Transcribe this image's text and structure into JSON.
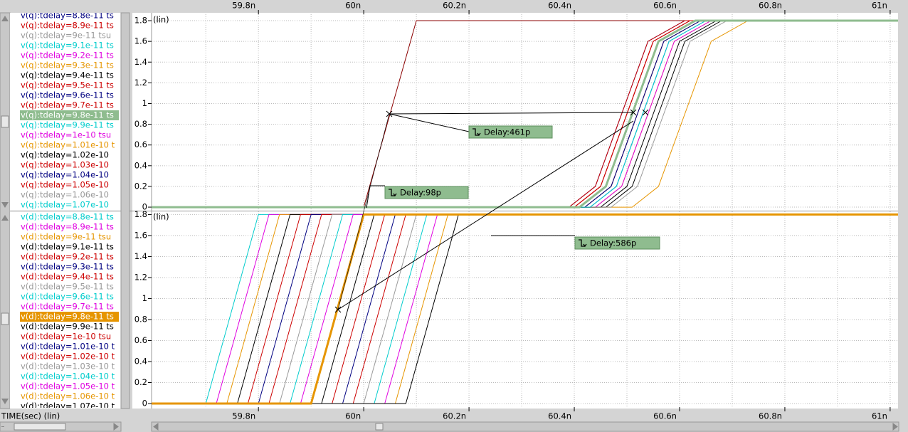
{
  "x_axis": {
    "label": "TIME(sec) (lin)",
    "xlim": [
      59.597,
      61.015
    ],
    "xticks": [
      {
        "value": 59.8,
        "label": "59.8n"
      },
      {
        "value": 60,
        "label": "60n"
      },
      {
        "value": 60.2,
        "label": "60.2n"
      },
      {
        "value": 60.4,
        "label": "60.4n"
      },
      {
        "value": 60.6,
        "label": "60.6n"
      },
      {
        "value": 60.8,
        "label": "60.8n"
      },
      {
        "value": 61,
        "label": "61n"
      }
    ],
    "xminor": [
      59.7,
      59.9,
      60.1,
      60.3,
      60.5,
      60.7,
      60.9
    ]
  },
  "panels": [
    {
      "scale_label": "(lin)",
      "ylim": [
        -0.034,
        1.862
      ],
      "yticks": [
        0,
        0.2,
        0.4,
        0.6,
        0.8,
        1,
        1.2,
        1.4,
        1.6,
        1.8
      ],
      "extra": [
        {
          "color": "#8b0000",
          "x": [
            59.597,
            60.0,
            60.1,
            61.015
          ],
          "y": [
            0,
            0,
            1.8,
            1.8
          ]
        }
      ],
      "signals": [
        {
          "name": "v(q):tdelay=8.8e-11 ts",
          "color": "#000080",
          "x": [
            59.597,
            60.39,
            60.44,
            60.49,
            60.54,
            60.61,
            61.015
          ],
          "y": [
            0,
            0,
            0.2,
            0.9,
            1.6,
            1.8,
            1.8
          ]
        },
        {
          "name": "v(q):tdelay=8.9e-11 ts",
          "color": "#cc0000",
          "x": [
            59.597,
            60.4,
            60.45,
            60.5,
            60.55,
            60.62,
            61.015
          ],
          "y": [
            0,
            0,
            0.2,
            0.9,
            1.6,
            1.8,
            1.8
          ]
        },
        {
          "name": "v(q):tdelay=9e-11 tsu",
          "color": "#999999",
          "x": [
            59.597,
            60.41,
            60.46,
            60.51,
            60.56,
            60.63,
            61.015
          ],
          "y": [
            0,
            0,
            0.2,
            0.9,
            1.6,
            1.8,
            1.8
          ]
        },
        {
          "name": "v(q):tdelay=9.1e-11 ts",
          "color": "#00cccc",
          "x": [
            59.597,
            60.42,
            60.47,
            60.52,
            60.57,
            60.64,
            61.015
          ],
          "y": [
            0,
            0,
            0.2,
            0.9,
            1.6,
            1.8,
            1.8
          ]
        },
        {
          "name": "v(q):tdelay=9.2e-11 ts",
          "color": "#e000e0",
          "x": [
            59.597,
            60.43,
            60.48,
            60.53,
            60.58,
            60.65,
            61.015
          ],
          "y": [
            0,
            0,
            0.2,
            0.9,
            1.6,
            1.8,
            1.8
          ]
        },
        {
          "name": "v(q):tdelay=9.3e-11 ts",
          "color": "#e69500",
          "x": [
            59.597,
            60.44,
            60.49,
            60.54,
            60.59,
            60.66,
            61.015
          ],
          "y": [
            0,
            0,
            0.2,
            0.9,
            1.6,
            1.8,
            1.8
          ]
        },
        {
          "name": "v(q):tdelay=9.4e-11 ts",
          "color": "#000000",
          "x": [
            59.597,
            60.45,
            60.5,
            60.55,
            60.6,
            60.67,
            61.015
          ],
          "y": [
            0,
            0,
            0.2,
            0.9,
            1.6,
            1.8,
            1.8
          ]
        },
        {
          "name": "v(q):tdelay=9.5e-11 ts",
          "color": "#cc0000",
          "x": [
            59.597,
            60.4,
            60.45,
            60.5,
            60.55,
            60.62,
            61.015
          ],
          "y": [
            0,
            0,
            0.2,
            0.9,
            1.6,
            1.8,
            1.8
          ]
        },
        {
          "name": "v(q):tdelay=9.6e-11 ts",
          "color": "#000080",
          "x": [
            59.597,
            60.41,
            60.46,
            60.51,
            60.56,
            60.63,
            61.015
          ],
          "y": [
            0,
            0,
            0.2,
            0.9,
            1.6,
            1.8,
            1.8
          ]
        },
        {
          "name": "v(q):tdelay=9.7e-11 ts",
          "color": "#cc0000",
          "x": [
            59.597,
            60.42,
            60.47,
            60.52,
            60.57,
            60.64,
            61.015
          ],
          "y": [
            0,
            0,
            0.2,
            0.9,
            1.6,
            1.8,
            1.8
          ]
        },
        {
          "name": "v(q):tdelay=9.8e-11 ts",
          "color": "#8fbc8f",
          "selected": true,
          "x": [
            59.597,
            60.41,
            60.46,
            60.51,
            60.56,
            60.63,
            61.015
          ],
          "y": [
            0,
            0,
            0.2,
            0.9,
            1.6,
            1.8,
            1.8
          ]
        },
        {
          "name": "v(q):tdelay=9.9e-11 ts",
          "color": "#00cccc",
          "x": [
            59.597,
            60.43,
            60.48,
            60.53,
            60.58,
            60.65,
            61.015
          ],
          "y": [
            0,
            0,
            0.2,
            0.9,
            1.6,
            1.8,
            1.8
          ]
        },
        {
          "name": "v(q):tdelay=1e-10 tsu",
          "color": "#e000e0",
          "x": [
            59.597,
            60.44,
            60.49,
            60.54,
            60.59,
            60.66,
            61.015
          ],
          "y": [
            0,
            0,
            0.2,
            0.9,
            1.6,
            1.8,
            1.8
          ]
        },
        {
          "name": "v(q):tdelay=1.01e-10 t",
          "color": "#e69500",
          "x": [
            59.597,
            60.51,
            60.56,
            60.61,
            60.66,
            60.73,
            61.015
          ],
          "y": [
            0,
            0,
            0.2,
            0.9,
            1.6,
            1.8,
            1.8
          ]
        },
        {
          "name": "v(q):tdelay=1.02e-10",
          "color": "#000000",
          "x": [
            59.597,
            60.46,
            60.51,
            60.56,
            60.61,
            60.68,
            61.015
          ],
          "y": [
            0,
            0,
            0.2,
            0.9,
            1.6,
            1.8,
            1.8
          ]
        },
        {
          "name": "v(q):tdelay=1.03e-10",
          "color": "#cc0000",
          "x": [
            59.597,
            60.39,
            60.44,
            60.49,
            60.54,
            60.61,
            61.015
          ],
          "y": [
            0,
            0,
            0.2,
            0.9,
            1.6,
            1.8,
            1.8
          ]
        },
        {
          "name": "v(q):tdelay=1.04e-10",
          "color": "#000080",
          "x": [
            59.597,
            60.42,
            60.47,
            60.52,
            60.57,
            60.64,
            61.015
          ],
          "y": [
            0,
            0,
            0.2,
            0.9,
            1.6,
            1.8,
            1.8
          ]
        },
        {
          "name": "v(q):tdelay=1.05e-10",
          "color": "#cc0000",
          "x": [
            59.597,
            60.4,
            60.45,
            60.5,
            60.55,
            60.62,
            61.015
          ],
          "y": [
            0,
            0,
            0.2,
            0.9,
            1.6,
            1.8,
            1.8
          ]
        },
        {
          "name": "v(q):tdelay=1.06e-10",
          "color": "#999999",
          "x": [
            59.597,
            60.47,
            60.52,
            60.57,
            60.62,
            60.69,
            61.015
          ],
          "y": [
            0,
            0,
            0.2,
            0.9,
            1.6,
            1.8,
            1.8
          ]
        },
        {
          "name": "v(q):tdelay=1.07e-10",
          "color": "#00cccc",
          "x": [
            59.597,
            60.43,
            60.48,
            60.53,
            60.58,
            60.65,
            61.015
          ],
          "y": [
            0,
            0,
            0.2,
            0.9,
            1.6,
            1.8,
            1.8
          ]
        }
      ]
    },
    {
      "scale_label": "(lin)",
      "ylim": [
        -0.034,
        1.83
      ],
      "yticks": [
        0,
        0.2,
        0.4,
        0.6,
        0.8,
        1,
        1.2,
        1.4,
        1.6,
        1.8
      ],
      "signals": [
        {
          "name": "v(d):tdelay=8.8e-11 ts",
          "color": "#00cccc",
          "x": [
            59.597,
            59.7,
            59.8,
            61.015
          ],
          "y": [
            0,
            0,
            1.8,
            1.8
          ]
        },
        {
          "name": "v(d):tdelay=8.9e-11 ts",
          "color": "#e000e0",
          "x": [
            59.597,
            59.72,
            59.82,
            61.015
          ],
          "y": [
            0,
            0,
            1.8,
            1.8
          ]
        },
        {
          "name": "v(d):tdelay=9e-11 tsu",
          "color": "#e69500",
          "x": [
            59.597,
            59.74,
            59.84,
            61.015
          ],
          "y": [
            0,
            0,
            1.8,
            1.8
          ]
        },
        {
          "name": "v(d):tdelay=9.1e-11 ts",
          "color": "#000000",
          "x": [
            59.597,
            59.76,
            59.86,
            61.015
          ],
          "y": [
            0,
            0,
            1.8,
            1.8
          ]
        },
        {
          "name": "v(d):tdelay=9.2e-11 ts",
          "color": "#cc0000",
          "x": [
            59.597,
            59.78,
            59.88,
            61.015
          ],
          "y": [
            0,
            0,
            1.8,
            1.8
          ]
        },
        {
          "name": "v(d):tdelay=9.3e-11 ts",
          "color": "#000080",
          "x": [
            59.597,
            59.8,
            59.9,
            61.015
          ],
          "y": [
            0,
            0,
            1.8,
            1.8
          ]
        },
        {
          "name": "v(d):tdelay=9.4e-11 ts",
          "color": "#cc0000",
          "x": [
            59.597,
            59.82,
            59.92,
            61.015
          ],
          "y": [
            0,
            0,
            1.8,
            1.8
          ]
        },
        {
          "name": "v(d):tdelay=9.5e-11 ts",
          "color": "#999999",
          "x": [
            59.597,
            59.84,
            59.94,
            61.015
          ],
          "y": [
            0,
            0,
            1.8,
            1.8
          ]
        },
        {
          "name": "v(d):tdelay=9.6e-11 ts",
          "color": "#00cccc",
          "x": [
            59.597,
            59.86,
            59.96,
            61.015
          ],
          "y": [
            0,
            0,
            1.8,
            1.8
          ]
        },
        {
          "name": "v(d):tdelay=9.7e-11 ts",
          "color": "#e000e0",
          "x": [
            59.597,
            59.88,
            59.98,
            61.015
          ],
          "y": [
            0,
            0,
            1.8,
            1.8
          ]
        },
        {
          "name": "v(d):tdelay=9.8e-11 ts",
          "color": "#e69500",
          "selected": true,
          "x": [
            59.597,
            59.9,
            60.0,
            61.015
          ],
          "y": [
            0,
            0,
            1.8,
            1.8
          ]
        },
        {
          "name": "v(d):tdelay=9.9e-11 ts",
          "color": "#000000",
          "x": [
            59.597,
            59.92,
            60.02,
            61.015
          ],
          "y": [
            0,
            0,
            1.8,
            1.8
          ]
        },
        {
          "name": "v(d):tdelay=1e-10 tsu",
          "color": "#cc0000",
          "x": [
            59.597,
            59.94,
            60.04,
            61.015
          ],
          "y": [
            0,
            0,
            1.8,
            1.8
          ]
        },
        {
          "name": "v(d):tdelay=1.01e-10 t",
          "color": "#000080",
          "x": [
            59.597,
            59.96,
            60.06,
            61.015
          ],
          "y": [
            0,
            0,
            1.8,
            1.8
          ]
        },
        {
          "name": "v(d):tdelay=1.02e-10 t",
          "color": "#cc0000",
          "x": [
            59.597,
            59.98,
            60.08,
            61.015
          ],
          "y": [
            0,
            0,
            1.8,
            1.8
          ]
        },
        {
          "name": "v(d):tdelay=1.03e-10 t",
          "color": "#999999",
          "x": [
            59.597,
            60.0,
            60.1,
            61.015
          ],
          "y": [
            0,
            0,
            1.8,
            1.8
          ]
        },
        {
          "name": "v(d):tdelay=1.04e-10 t",
          "color": "#00cccc",
          "x": [
            59.597,
            60.02,
            60.12,
            61.015
          ],
          "y": [
            0,
            0,
            1.8,
            1.8
          ]
        },
        {
          "name": "v(d):tdelay=1.05e-10 t",
          "color": "#e000e0",
          "x": [
            59.597,
            60.04,
            60.14,
            61.015
          ],
          "y": [
            0,
            0,
            1.8,
            1.8
          ]
        },
        {
          "name": "v(d):tdelay=1.06e-10 t",
          "color": "#e69500",
          "x": [
            59.597,
            60.06,
            60.16,
            61.015
          ],
          "y": [
            0,
            0,
            1.8,
            1.8
          ]
        },
        {
          "name": "v(d):tdelay=1.07e-10 t",
          "color": "#000000",
          "x": [
            59.597,
            60.08,
            60.18,
            61.015
          ],
          "y": [
            0,
            0,
            1.8,
            1.8
          ]
        }
      ]
    }
  ],
  "annotations": [
    {
      "text": "Delay:461p"
    },
    {
      "text": "Delay:98p"
    },
    {
      "text": "Delay:586p"
    }
  ]
}
